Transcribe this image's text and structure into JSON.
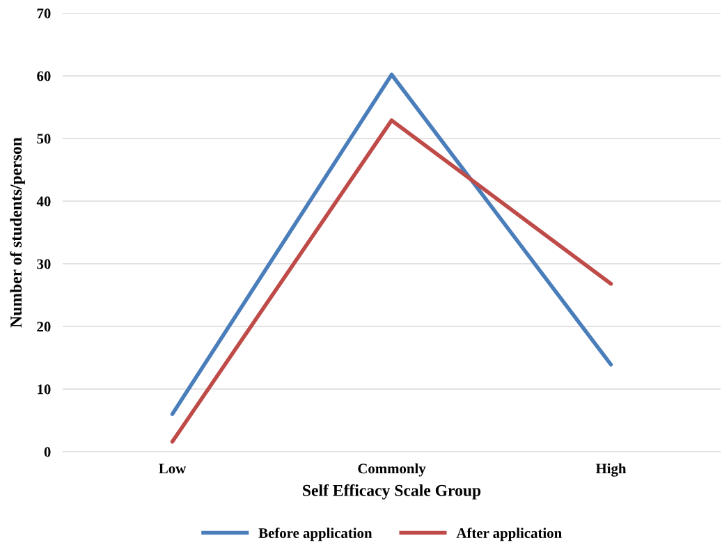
{
  "chart_data": {
    "type": "line",
    "xlabel": "Self Efficacy Scale Group",
    "ylabel": "Number of students/person",
    "categories": [
      "Low",
      "Commonly",
      "High"
    ],
    "series": [
      {
        "name": "Before application",
        "color": "#4a7ebb",
        "values": [
          6,
          60.2,
          13.9
        ]
      },
      {
        "name": "After application",
        "color": "#be4b48",
        "values": [
          1.6,
          52.9,
          26.8
        ]
      }
    ],
    "ylim": [
      0,
      70
    ],
    "yticks": [
      0,
      10,
      20,
      30,
      40,
      50,
      60,
      70
    ],
    "grid": "y",
    "legend": "bottom",
    "marker": "none",
    "line_style": "solid"
  }
}
